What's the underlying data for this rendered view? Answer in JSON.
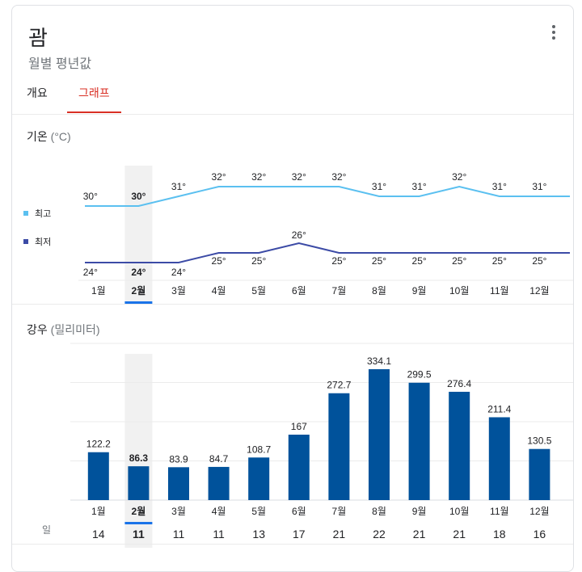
{
  "header": {
    "title": "괌",
    "subtitle": "월별 평년값",
    "menu_icon": "more-vert-icon"
  },
  "tabs": [
    {
      "label": "개요",
      "active": false
    },
    {
      "label": "그래프",
      "active": true
    }
  ],
  "temperature": {
    "label": "기온",
    "unit": "(°C)",
    "legend": {
      "high": "최고",
      "low": "최저"
    },
    "colors": {
      "high": "#5bc0f0",
      "low": "#3c4ba6"
    }
  },
  "rain": {
    "label": "강우",
    "unit": "(밀리미터)",
    "days_label": "일",
    "bar_color": "#00529b"
  },
  "selected_index": 1,
  "chart_data": [
    {
      "type": "line",
      "categories": [
        "1월",
        "2월",
        "3월",
        "4월",
        "5월",
        "6월",
        "7월",
        "8월",
        "9월",
        "10월",
        "11월",
        "12월"
      ],
      "series": [
        {
          "name": "최고",
          "values": [
            30,
            30,
            31,
            32,
            32,
            32,
            32,
            31,
            31,
            32,
            31,
            31
          ]
        },
        {
          "name": "최저",
          "values": [
            24,
            24,
            24,
            25,
            25,
            26,
            25,
            25,
            25,
            25,
            25,
            25
          ]
        }
      ],
      "labels": {
        "high": [
          "30°",
          "30°",
          "31°",
          "32°",
          "32°",
          "32°",
          "32°",
          "31°",
          "31°",
          "32°",
          "31°",
          "31°"
        ],
        "low": [
          "24°",
          "24°",
          "24°",
          "25°",
          "25°",
          "26°",
          "25°",
          "25°",
          "25°",
          "25°",
          "25°",
          "25°"
        ]
      },
      "ylabel": "기온 (°C)",
      "grid": false
    },
    {
      "type": "bar",
      "categories": [
        "1월",
        "2월",
        "3월",
        "4월",
        "5월",
        "6월",
        "7월",
        "8월",
        "9월",
        "10월",
        "11월",
        "12월"
      ],
      "values": [
        122.2,
        86.3,
        83.9,
        84.7,
        108.7,
        167,
        272.7,
        334.1,
        299.5,
        276.4,
        211.4,
        130.5
      ],
      "value_labels": [
        "122.2",
        "86.3",
        "83.9",
        "84.7",
        "108.7",
        "167",
        "272.7",
        "334.1",
        "299.5",
        "276.4",
        "211.4",
        "130.5"
      ],
      "days": [
        "14",
        "11",
        "11",
        "11",
        "13",
        "17",
        "21",
        "22",
        "21",
        "21",
        "18",
        "16"
      ],
      "ylabel": "강우 (밀리미터)",
      "ylim": [
        0,
        400
      ],
      "grid": true
    }
  ]
}
